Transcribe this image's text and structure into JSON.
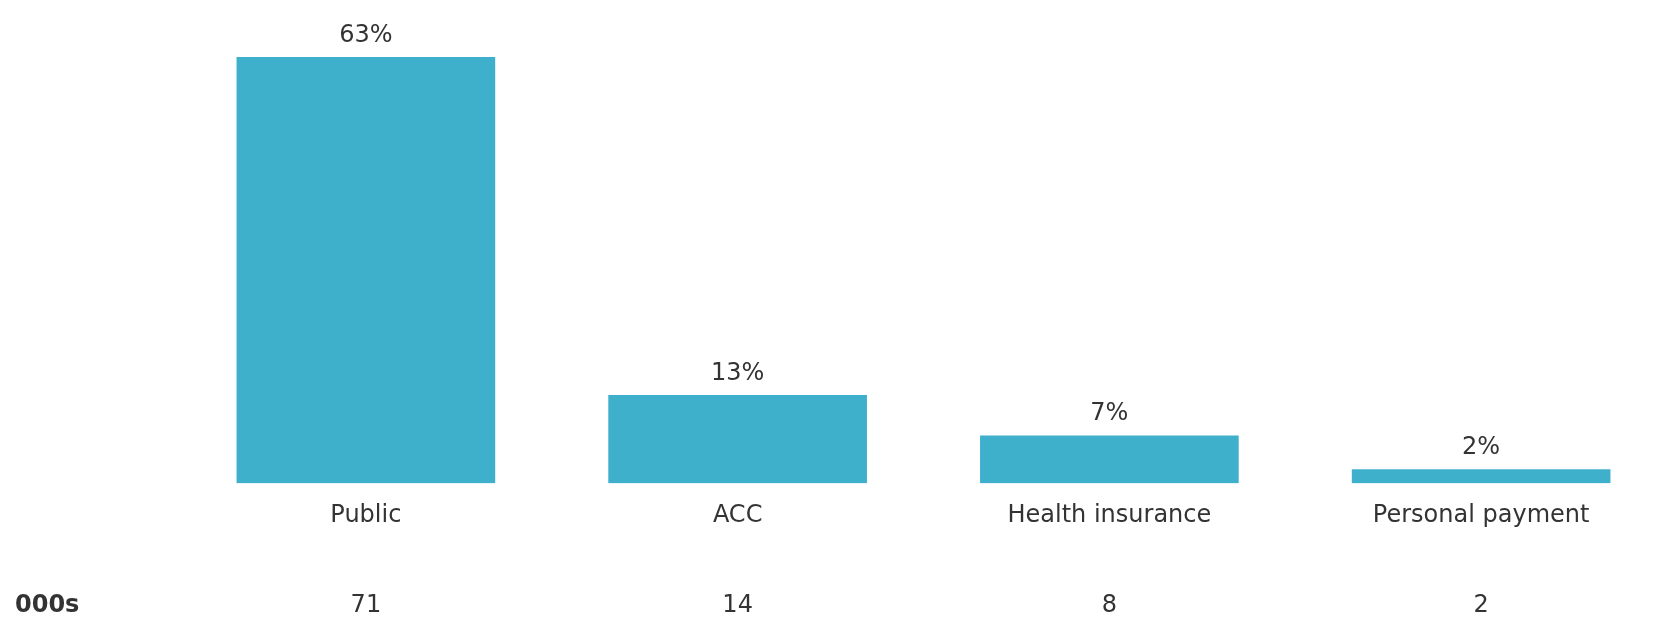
{
  "chart_data": {
    "type": "bar",
    "categories": [
      "Public",
      "ACC",
      "Health insurance",
      "Personal payment"
    ],
    "values": [
      63,
      13,
      7,
      2
    ],
    "color": "#3fb0cc",
    "value_labels": [
      "63%",
      "13%",
      "7%",
      "2%"
    ],
    "grid": false,
    "legend": false,
    "tick_labels": "x",
    "annotations": [
      "000s",
      "71",
      "14",
      "8",
      "2"
    ]
  }
}
